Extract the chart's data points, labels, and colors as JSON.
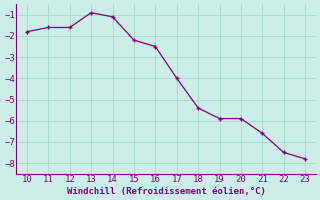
{
  "x": [
    10,
    11,
    12,
    13,
    14,
    15,
    16,
    17,
    18,
    19,
    20,
    21,
    22,
    23
  ],
  "y": [
    -1.8,
    -1.6,
    -1.6,
    -0.9,
    -1.1,
    -2.2,
    -2.5,
    -4.0,
    -5.4,
    -5.9,
    -5.9,
    -6.6,
    -7.5,
    -7.8
  ],
  "line_color": "#800080",
  "marker": "P",
  "marker_size": 2.5,
  "background_color": "#cceee8",
  "grid_color": "#aaddcc",
  "spine_color": "#800080",
  "xlabel": "Windchill (Refroidissement éolien,°C)",
  "xlabel_color": "#800080",
  "tick_color": "#800080",
  "ylim": [
    -8.5,
    -0.5
  ],
  "xlim": [
    9.5,
    23.5
  ],
  "yticks": [
    -8,
    -7,
    -6,
    -5,
    -4,
    -3,
    -2,
    -1
  ],
  "xticks": [
    10,
    11,
    12,
    13,
    14,
    15,
    16,
    17,
    18,
    19,
    20,
    21,
    22,
    23
  ],
  "tick_fontsize": 6.5,
  "xlabel_fontsize": 6.5
}
